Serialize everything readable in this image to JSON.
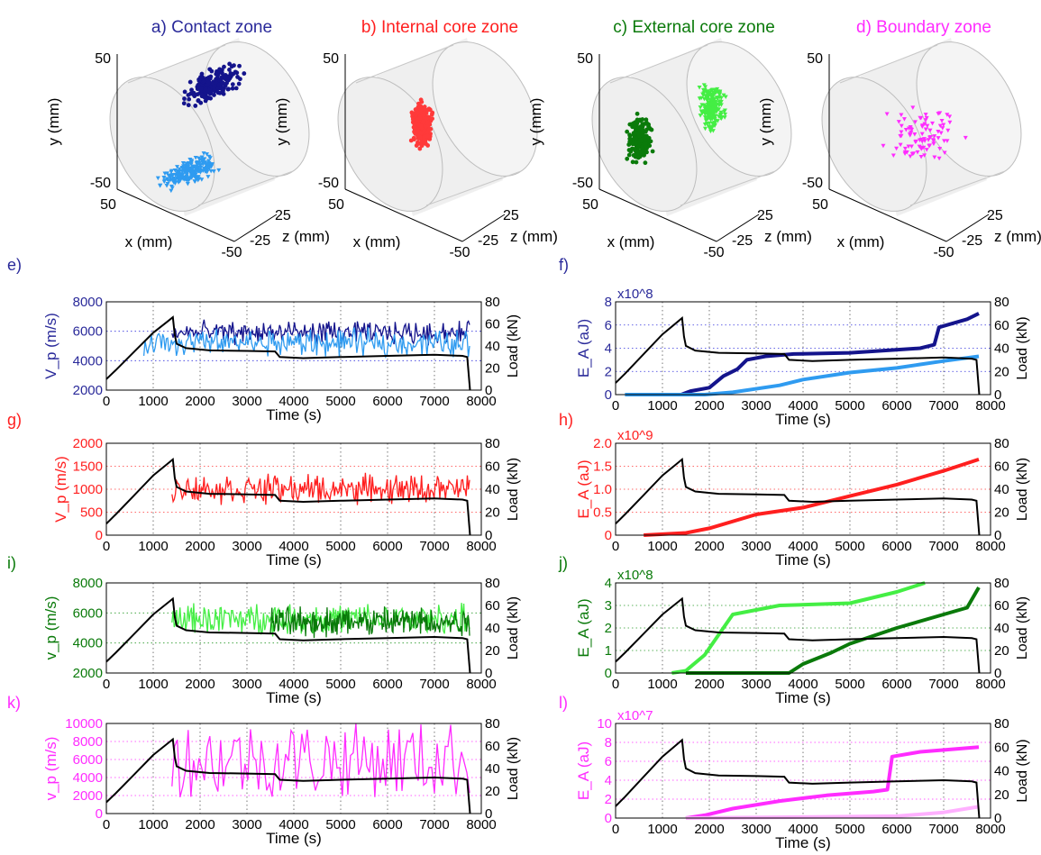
{
  "colors": {
    "contact_dark": "#14148c",
    "contact_light": "#2f9bf0",
    "internal": "#ff1f1f",
    "external_dark": "#0a7a0a",
    "external_light": "#44ee44",
    "boundary": "#ff2cff",
    "boundary_light": "#ffb0ff",
    "load": "#000000",
    "title_blue": "#2a2a9a",
    "grid_blue": "#3333dd",
    "grid_green": "#2a9a2a"
  },
  "panels_3d": [
    {
      "id": "a",
      "title": "a) Contact zone",
      "title_color": "#2a2a9a",
      "y_label": "y (mm)",
      "x_label": "x (mm)",
      "z_label": "z (mm)",
      "y_ticks": [
        "50",
        "-50"
      ],
      "x_tick": "50",
      "z_ticks": [
        "25",
        "-25",
        "-50"
      ],
      "clouds": [
        {
          "color": "#14148c",
          "marker": "dot"
        },
        {
          "color": "#2f9bf0",
          "marker": "tri"
        }
      ]
    },
    {
      "id": "b",
      "title": "b) Internal core zone",
      "title_color": "#ff1f1f",
      "y_label": "y (mm)",
      "x_label": "x (mm)",
      "z_label": "z (mm)",
      "y_ticks": [
        "50",
        "-50"
      ],
      "x_tick": "50",
      "z_ticks": [
        "25",
        "-25",
        "-50"
      ],
      "clouds": [
        {
          "color": "#ff3a3a",
          "marker": "dot"
        }
      ]
    },
    {
      "id": "c",
      "title": "c) External core zone",
      "title_color": "#0a7a0a",
      "y_label": "y (mm)",
      "x_label": "x (mm)",
      "z_label": "z (mm)",
      "y_ticks": [
        "50",
        "-50"
      ],
      "x_tick": "50",
      "z_ticks": [
        "25",
        "-25",
        "-50"
      ],
      "clouds": [
        {
          "color": "#0a7a0a",
          "marker": "dot"
        },
        {
          "color": "#44ee44",
          "marker": "tri"
        }
      ]
    },
    {
      "id": "d",
      "title": "d) Boundary zone",
      "title_color": "#ff2cff",
      "y_label": "y (mm)",
      "x_label": "x (mm)",
      "z_label": "z (mm)",
      "y_ticks": [
        "50",
        "-50"
      ],
      "x_tick": "50",
      "z_ticks": [
        "25",
        "-25",
        "-50"
      ],
      "clouds": [
        {
          "color": "#ff2cff",
          "marker": "tri"
        }
      ]
    }
  ],
  "chart_data": [
    {
      "id": "e",
      "panel_label": "e)",
      "label_color": "#2a2a9a",
      "type": "line",
      "xlabel": "Time (s)",
      "ylabel": "V_p (m/s)",
      "ylabel_color": "#2a2a9a",
      "ylabel_right": "Load (kN)",
      "xlim": [
        0,
        8000
      ],
      "ylim": [
        2000,
        8000
      ],
      "ylim_right": [
        0,
        80
      ],
      "x_ticks": [
        "0",
        "1000",
        "2000",
        "3000",
        "4000",
        "5000",
        "6000",
        "7000",
        "8000"
      ],
      "y_ticks": [
        "2000",
        "4000",
        "6000",
        "8000"
      ],
      "y_ticks_right": [
        "0",
        "20",
        "40",
        "60",
        "80"
      ],
      "grid_color": "#3333dd",
      "series": [
        {
          "style": "noisy",
          "color": "#14148c",
          "start": 1400,
          "end": 7750,
          "base": 5900,
          "amp": 900
        },
        {
          "style": "noisy",
          "color": "#2f9bf0",
          "start": 800,
          "end": 7750,
          "base": 5200,
          "amp": 1100
        }
      ],
      "load": "std"
    },
    {
      "id": "f",
      "panel_label": "f)",
      "label_color": "#2a2a9a",
      "type": "line",
      "xlabel": "Time (s)",
      "ylabel": "E_A (aJ)",
      "ylabel_color": "#2a2a9a",
      "ylabel_right": "Load (kN)",
      "exponent": "x10^8",
      "exponent_color": "#2a2a9a",
      "xlim": [
        0,
        8000
      ],
      "ylim": [
        0,
        8
      ],
      "ylim_right": [
        0,
        80
      ],
      "x_ticks": [
        "0",
        "1000",
        "2000",
        "3000",
        "4000",
        "5000",
        "6000",
        "7000",
        "8000"
      ],
      "y_ticks": [
        "0",
        "2",
        "4",
        "6",
        "8"
      ],
      "y_ticks_right": [
        "0",
        "20",
        "40",
        "60",
        "80"
      ],
      "grid_color": "#3333dd",
      "series": [
        {
          "style": "cum",
          "color": "#14148c",
          "pts": [
            [
              1400,
              0
            ],
            [
              1600,
              0.3
            ],
            [
              2000,
              0.6
            ],
            [
              2300,
              1.6
            ],
            [
              2600,
              2.2
            ],
            [
              2800,
              3.0
            ],
            [
              3200,
              3.3
            ],
            [
              3800,
              3.5
            ],
            [
              5000,
              3.6
            ],
            [
              6500,
              4.0
            ],
            [
              6800,
              4.3
            ],
            [
              6900,
              5.8
            ],
            [
              7500,
              6.5
            ],
            [
              7750,
              7.0
            ]
          ]
        },
        {
          "style": "cum",
          "color": "#2f9bf0",
          "pts": [
            [
              200,
              0
            ],
            [
              1900,
              0
            ],
            [
              2500,
              0.2
            ],
            [
              3500,
              0.8
            ],
            [
              4000,
              1.3
            ],
            [
              5000,
              1.9
            ],
            [
              6000,
              2.3
            ],
            [
              6500,
              2.6
            ],
            [
              7000,
              2.9
            ],
            [
              7750,
              3.3
            ]
          ]
        }
      ],
      "load": "std"
    },
    {
      "id": "g",
      "panel_label": "g)",
      "label_color": "#ff1f1f",
      "type": "line",
      "xlabel": "Time (s)",
      "ylabel": "V_p (m/s)",
      "ylabel_color": "#ff1f1f",
      "ylabel_right": "Load (kN)",
      "xlim": [
        0,
        8000
      ],
      "ylim": [
        0,
        2000
      ],
      "ylim_right": [
        0,
        80
      ],
      "x_ticks": [
        "0",
        "1000",
        "2000",
        "3000",
        "4000",
        "5000",
        "6000",
        "7000",
        "8000"
      ],
      "y_ticks": [
        "0",
        "500",
        "1000",
        "1500",
        "2000"
      ],
      "y_ticks_right": [
        "0",
        "20",
        "40",
        "60",
        "80"
      ],
      "grid_color": "#ff3a3a",
      "series": [
        {
          "style": "noisy",
          "color": "#ff1f1f",
          "start": 1400,
          "end": 7750,
          "base": 1000,
          "amp": 380
        }
      ],
      "load": "std"
    },
    {
      "id": "h",
      "panel_label": "h)",
      "label_color": "#ff1f1f",
      "type": "line",
      "xlabel": "Time (s)",
      "ylabel": "E_A (aJ)",
      "ylabel_color": "#ff1f1f",
      "ylabel_right": "Load (kN)",
      "exponent": "x10^9",
      "exponent_color": "#ff1f1f",
      "xlim": [
        0,
        8000
      ],
      "ylim": [
        0,
        2.0
      ],
      "ylim_right": [
        0,
        80
      ],
      "x_ticks": [
        "0",
        "1000",
        "2000",
        "3000",
        "4000",
        "5000",
        "6000",
        "7000",
        "8000"
      ],
      "y_ticks": [
        "0",
        "0.5",
        "1.0",
        "1.5",
        "2.0"
      ],
      "y_ticks_right": [
        "0",
        "20",
        "40",
        "60",
        "80"
      ],
      "grid_color": "#ff3a3a",
      "series": [
        {
          "style": "cum",
          "color": "#ff1f1f",
          "pts": [
            [
              600,
              0
            ],
            [
              1500,
              0.05
            ],
            [
              2000,
              0.15
            ],
            [
              3000,
              0.45
            ],
            [
              4000,
              0.6
            ],
            [
              5000,
              0.85
            ],
            [
              6000,
              1.1
            ],
            [
              7000,
              1.4
            ],
            [
              7750,
              1.65
            ]
          ]
        }
      ],
      "load": "std"
    },
    {
      "id": "i",
      "panel_label": "i)",
      "label_color": "#0a7a0a",
      "type": "line",
      "xlabel": "Time (s)",
      "ylabel": "v_p (m/s)",
      "ylabel_color": "#0a7a0a",
      "ylabel_right": "Load (kN)",
      "xlim": [
        0,
        8000
      ],
      "ylim": [
        2000,
        8000
      ],
      "ylim_right": [
        0,
        80
      ],
      "x_ticks": [
        "0",
        "1000",
        "2000",
        "3000",
        "4000",
        "5000",
        "6000",
        "7000",
        "8000"
      ],
      "y_ticks": [
        "2000",
        "4000",
        "6000",
        "8000"
      ],
      "y_ticks_right": [
        "0",
        "20",
        "40",
        "60",
        "80"
      ],
      "grid_color": "#2a9a2a",
      "series": [
        {
          "style": "noisy",
          "color": "#44ee44",
          "start": 1400,
          "end": 7750,
          "base": 5600,
          "amp": 1200
        },
        {
          "style": "noisy",
          "color": "#0a7a0a",
          "start": 3500,
          "end": 7750,
          "base": 5400,
          "amp": 1200
        }
      ],
      "load": "std"
    },
    {
      "id": "j",
      "panel_label": "j)",
      "label_color": "#0a7a0a",
      "type": "line",
      "xlabel": "Time (s)",
      "ylabel": "E_A (aJ)",
      "ylabel_color": "#0a7a0a",
      "ylabel_right": "Load (kN)",
      "exponent": "x10^8",
      "exponent_color": "#0a7a0a",
      "xlim": [
        0,
        8000
      ],
      "ylim": [
        0,
        4
      ],
      "ylim_right": [
        0,
        80
      ],
      "x_ticks": [
        "0",
        "1000",
        "2000",
        "3000",
        "4000",
        "5000",
        "6000",
        "7000",
        "8000"
      ],
      "y_ticks": [
        "0",
        "1",
        "2",
        "3",
        "4"
      ],
      "y_ticks_right": [
        "0",
        "20",
        "40",
        "60",
        "80"
      ],
      "grid_color": "#2a9a2a",
      "series": [
        {
          "style": "cum",
          "color": "#44ee44",
          "pts": [
            [
              1200,
              0
            ],
            [
              1500,
              0.1
            ],
            [
              1900,
              0.8
            ],
            [
              2300,
              2.0
            ],
            [
              2500,
              2.6
            ],
            [
              3500,
              3.0
            ],
            [
              5000,
              3.1
            ],
            [
              6000,
              3.6
            ],
            [
              6600,
              4.0
            ]
          ]
        },
        {
          "style": "cum",
          "color": "#0a7a0a",
          "pts": [
            [
              1500,
              0
            ],
            [
              3700,
              0
            ],
            [
              4000,
              0.4
            ],
            [
              4600,
              0.9
            ],
            [
              5000,
              1.3
            ],
            [
              6000,
              2.0
            ],
            [
              7000,
              2.6
            ],
            [
              7500,
              2.9
            ],
            [
              7750,
              3.8
            ]
          ]
        }
      ],
      "load": "std"
    },
    {
      "id": "k",
      "panel_label": "k)",
      "label_color": "#ff2cff",
      "type": "line",
      "xlabel": "Time (s)",
      "ylabel": "v_p (m/s)",
      "ylabel_color": "#ff2cff",
      "ylabel_right": "Load (kN)",
      "xlim": [
        0,
        8000
      ],
      "ylim": [
        0,
        10000
      ],
      "ylim_right": [
        0,
        80
      ],
      "x_ticks": [
        "0",
        "1000",
        "2000",
        "3000",
        "4000",
        "5000",
        "6000",
        "7000",
        "8000"
      ],
      "y_ticks": [
        "0",
        "2000",
        "4000",
        "6000",
        "8000",
        "10000"
      ],
      "y_ticks_right": [
        "0",
        "20",
        "40",
        "60",
        "80"
      ],
      "grid_color": "#ff2cff",
      "series": [
        {
          "style": "spiky",
          "color": "#ff2cff",
          "start": 1400,
          "end": 7750,
          "base": 6000,
          "amp": 4200
        }
      ],
      "load": "std"
    },
    {
      "id": "l",
      "panel_label": "l)",
      "label_color": "#ff2cff",
      "type": "line",
      "xlabel": "Time (s)",
      "ylabel": "E_A (aJ)",
      "ylabel_color": "#ff2cff",
      "ylabel_right": "Load (kN)",
      "exponent": "x10^7",
      "exponent_color": "#ff2cff",
      "xlim": [
        0,
        8000
      ],
      "ylim": [
        0,
        10
      ],
      "ylim_right": [
        0,
        80
      ],
      "x_ticks": [
        "0",
        "1000",
        "2000",
        "3000",
        "4000",
        "5000",
        "6000",
        "7000",
        "8000"
      ],
      "y_ticks": [
        "0",
        "2",
        "4",
        "6",
        "8",
        "10"
      ],
      "y_ticks_right": [
        "0",
        "20",
        "40",
        "60",
        "80"
      ],
      "grid_color": "#ff2cff",
      "series": [
        {
          "style": "cum",
          "color": "#ff2cff",
          "pts": [
            [
              1500,
              0
            ],
            [
              1900,
              0.3
            ],
            [
              2500,
              1.0
            ],
            [
              3500,
              1.8
            ],
            [
              4500,
              2.4
            ],
            [
              5500,
              2.8
            ],
            [
              5800,
              3.0
            ],
            [
              5900,
              6.5
            ],
            [
              6500,
              7.0
            ],
            [
              7750,
              7.5
            ]
          ]
        },
        {
          "style": "cum",
          "color": "#ffb0ff",
          "pts": [
            [
              1500,
              0
            ],
            [
              6000,
              0.2
            ],
            [
              7000,
              0.6
            ],
            [
              7750,
              1.2
            ]
          ]
        }
      ],
      "load": "std"
    }
  ]
}
